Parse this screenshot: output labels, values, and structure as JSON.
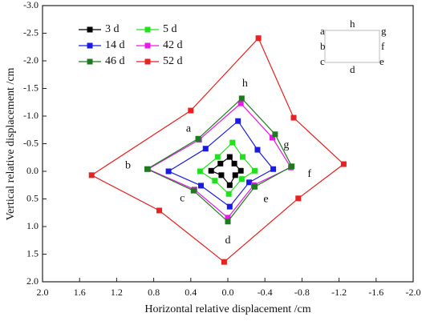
{
  "chart_data": {
    "type": "line",
    "xlabel": "Horizontal relative displacement /cm",
    "ylabel": "Vertical relative displacement /cm",
    "xlim": [
      2.0,
      -2.0
    ],
    "ylim": [
      2.0,
      -3.0
    ],
    "xticks": [
      {
        "value": 2.0,
        "label": "2.0"
      },
      {
        "value": 1.6,
        "label": "1.6"
      },
      {
        "value": 1.2,
        "label": "1.2"
      },
      {
        "value": 0.8,
        "label": "0.8"
      },
      {
        "value": 0.4,
        "label": "0.4"
      },
      {
        "value": 0.0,
        "label": "0.0"
      },
      {
        "value": -0.4,
        "label": "-0.4"
      },
      {
        "value": -0.8,
        "label": "-0.8"
      },
      {
        "value": -1.2,
        "label": "-1.2"
      },
      {
        "value": -1.6,
        "label": "-1.6"
      },
      {
        "value": -2.0,
        "label": "-2.0"
      }
    ],
    "yticks": [
      {
        "value": -3.0,
        "label": "-3.0"
      },
      {
        "value": -2.5,
        "label": "-2.5"
      },
      {
        "value": -2.0,
        "label": "-2.0"
      },
      {
        "value": -1.5,
        "label": "-1.5"
      },
      {
        "value": -1.0,
        "label": "-1.0"
      },
      {
        "value": -0.5,
        "label": "-0.5"
      },
      {
        "value": 0.0,
        "label": "0.0"
      },
      {
        "value": 0.5,
        "label": "0.5"
      },
      {
        "value": 1.0,
        "label": "1.0"
      },
      {
        "value": 1.5,
        "label": "1.5"
      },
      {
        "value": 2.0,
        "label": "2.0"
      }
    ],
    "point_labels": [
      "a",
      "h",
      "g",
      "f",
      "e",
      "d",
      "c",
      "b"
    ],
    "inset_labels": [
      "a",
      "h",
      "g",
      "b",
      "f",
      "c",
      "d",
      "e"
    ],
    "series": [
      {
        "name": "3 d",
        "color": "#000000",
        "x": [
          0.08,
          -0.02,
          -0.07,
          -0.14,
          -0.08,
          -0.02,
          0.07,
          0.18
        ],
        "values": [
          -0.14,
          -0.26,
          -0.14,
          -0.01,
          0.07,
          0.25,
          0.07,
          -0.01
        ]
      },
      {
        "name": "5 d",
        "color": "#22e01e",
        "x": [
          0.11,
          -0.05,
          -0.16,
          -0.29,
          -0.15,
          -0.01,
          0.14,
          0.3
        ],
        "values": [
          -0.26,
          -0.52,
          -0.26,
          -0.01,
          0.14,
          0.41,
          0.17,
          0.0
        ]
      },
      {
        "name": "14 d",
        "color": "#1a1ae6",
        "x": [
          0.24,
          -0.11,
          -0.32,
          -0.49,
          -0.23,
          -0.02,
          0.29,
          0.64
        ],
        "values": [
          -0.41,
          -0.91,
          -0.39,
          -0.04,
          0.2,
          0.64,
          0.26,
          0.0
        ]
      },
      {
        "name": "42 d",
        "color": "#e61ae6",
        "x": [
          0.31,
          -0.14,
          -0.48,
          -0.68,
          -0.28,
          0.0,
          0.36,
          0.86
        ],
        "values": [
          -0.57,
          -1.23,
          -0.61,
          -0.07,
          0.25,
          0.84,
          0.33,
          -0.04
        ]
      },
      {
        "name": "46 d",
        "color": "#1f7a1f",
        "x": [
          0.32,
          -0.15,
          -0.51,
          -0.69,
          -0.29,
          0.0,
          0.37,
          0.87
        ],
        "values": [
          -0.59,
          -1.32,
          -0.67,
          -0.09,
          0.28,
          0.91,
          0.35,
          -0.04
        ]
      },
      {
        "name": "52 d",
        "color": "#e62222",
        "x": [
          0.4,
          -0.33,
          -0.71,
          -1.25,
          -0.76,
          0.04,
          0.74,
          1.47
        ],
        "values": [
          -1.1,
          -2.41,
          -0.97,
          -0.13,
          0.49,
          1.64,
          0.71,
          0.07
        ]
      }
    ]
  }
}
